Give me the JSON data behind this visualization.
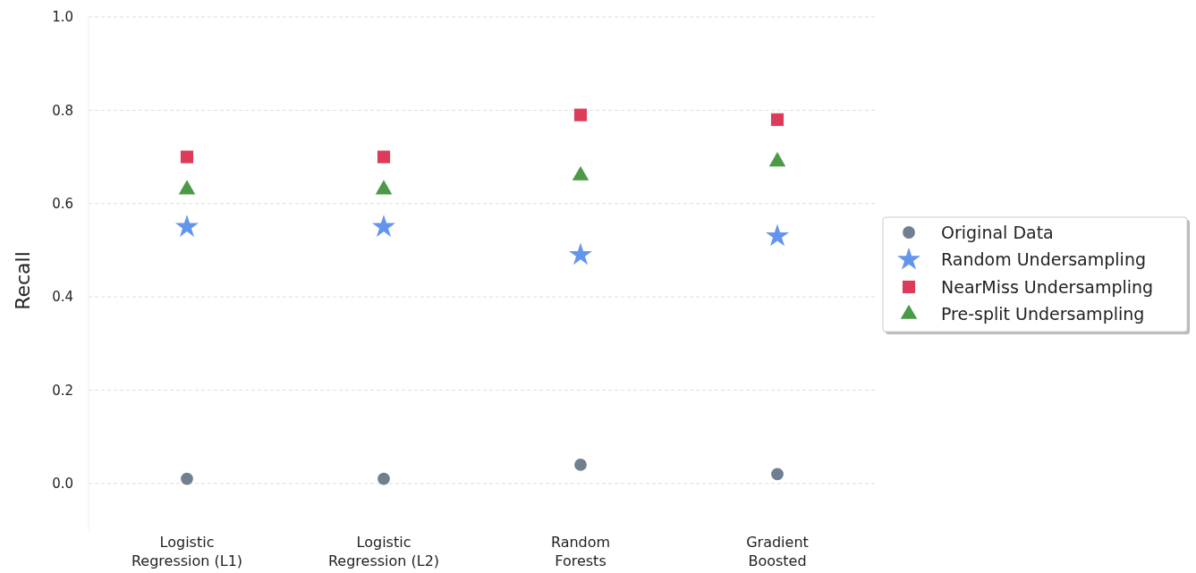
{
  "chart_data": {
    "type": "scatter",
    "ylabel": "Recall",
    "categories": [
      "Logistic Regression (L1)",
      "Logistic Regression (L2)",
      "Random Forests",
      "Gradient Boosted"
    ],
    "series": [
      {
        "name": "Original Data",
        "color": "#708090",
        "marker": "circle",
        "values": [
          0.01,
          0.01,
          0.04,
          0.02
        ]
      },
      {
        "name": "Random Undersampling",
        "color": "#6495ed",
        "marker": "star",
        "values": [
          0.55,
          0.55,
          0.49,
          0.53
        ]
      },
      {
        "name": "NearMiss Undersampling",
        "color": "#dc3c5a",
        "marker": "square",
        "values": [
          0.7,
          0.7,
          0.79,
          0.78
        ]
      },
      {
        "name": "Pre-split Undersampling",
        "color": "#4c9a48",
        "marker": "triangle",
        "values": [
          0.63,
          0.63,
          0.66,
          0.69
        ]
      }
    ],
    "ylim": [
      -0.1,
      1.0
    ],
    "yticks": [
      {
        "value": 0,
        "label": "0.0"
      },
      0.2,
      0.4,
      0.6,
      0.8,
      {
        "value": 1,
        "label": "1.0"
      }
    ],
    "grid": "y",
    "legend": "right"
  }
}
